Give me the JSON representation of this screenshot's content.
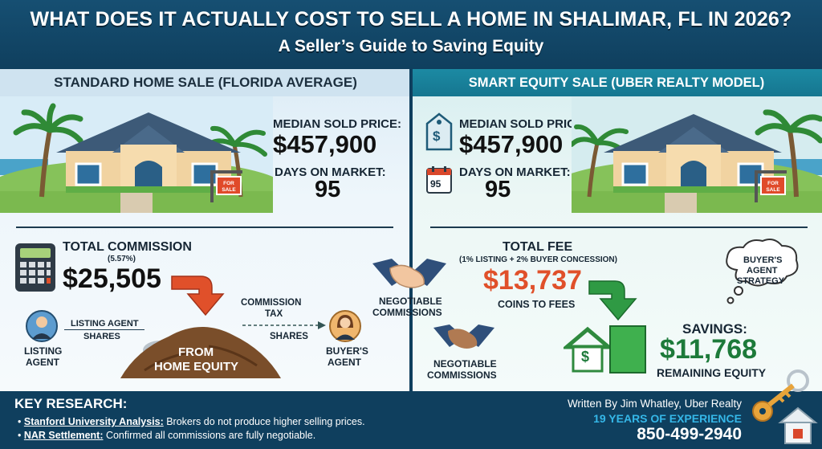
{
  "header": {
    "title": "WHAT DOES IT ACTUALLY COST TO SELL A HOME IN SHALIMAR, FL IN 2026?",
    "subtitle": "A Seller’s Guide to Saving Equity"
  },
  "left": {
    "title": "STANDARD HOME SALE (FLORIDA AVERAGE)",
    "median_label": "MEDIAN SOLD PRICE:",
    "median_value": "$457,900",
    "dom_label": "DAYS ON MARKET:",
    "dom_value": "95",
    "sign_text": "FOR SALE",
    "commission_label": "TOTAL COMMISSION",
    "commission_rate": "(5.57%)",
    "commission_value": "$25,505",
    "listing_shares": "LISTING AGENT SHARES",
    "listing_shares_line1": "LISTING AGENT",
    "listing_shares_line2": "SHARES",
    "commission_tax_line1": "COMMISSION",
    "commission_tax_line2": "TAX",
    "shares": "SHARES",
    "from_line1": "FROM",
    "from_line2": "HOME EQUITY",
    "listing_agent_line1": "LISTING",
    "listing_agent_line2": "AGENT",
    "buyers_agent_line1": "BUYER'S",
    "buyers_agent_line2": "AGENT"
  },
  "middle": {
    "negotiable1_line1": "NEGOTIABLE",
    "negotiable1_line2": "COMMISSIONS",
    "negotiable2_line1": "NEGOTIABLE",
    "negotiable2_line2": "COMMISSIONS"
  },
  "right": {
    "title": "SMART EQUITY SALE (UBER REALTY MODEL)",
    "median_label": "MEDIAN SOLD PRICE:",
    "median_value": "$457,900",
    "dom_label": "DAYS ON MARKET:",
    "dom_value": "95",
    "calendar_value": "95",
    "tag_symbol": "$",
    "sign_text": "FOR SALE",
    "fee_label": "TOTAL FEE",
    "fee_detail": "(1% LISTING + 2% BUYER CONCESSION)",
    "fee_value": "$13,737",
    "coins_label": "COINS TO FEES",
    "bubble_line1": "BUYER'S",
    "bubble_line2": "AGENT",
    "bubble_line3": "STRATEGY",
    "savings_label": "SAVINGS:",
    "savings_value": "$11,768",
    "remaining_label": "REMAINING EQUITY",
    "house_symbol": "$"
  },
  "footer": {
    "key_research": "KEY RESEARCH:",
    "b1_title": "Stanford University Analysis:",
    "b1_text": " Brokers do not produce higher selling prices.",
    "b2_title": "NAR Settlement:",
    "b2_text": " Confirmed all commissions are fully negotiable.",
    "written_by": "Written By Jim Whatley, Uber Realty",
    "experience": "19 YEARS OF EXPERIENCE",
    "phone": "850-499-2940"
  },
  "colors": {
    "navy": "#0f3f5e",
    "teal": "#1c8aa3",
    "red_accent": "#e0502a",
    "green_accent": "#1d7a3a"
  }
}
